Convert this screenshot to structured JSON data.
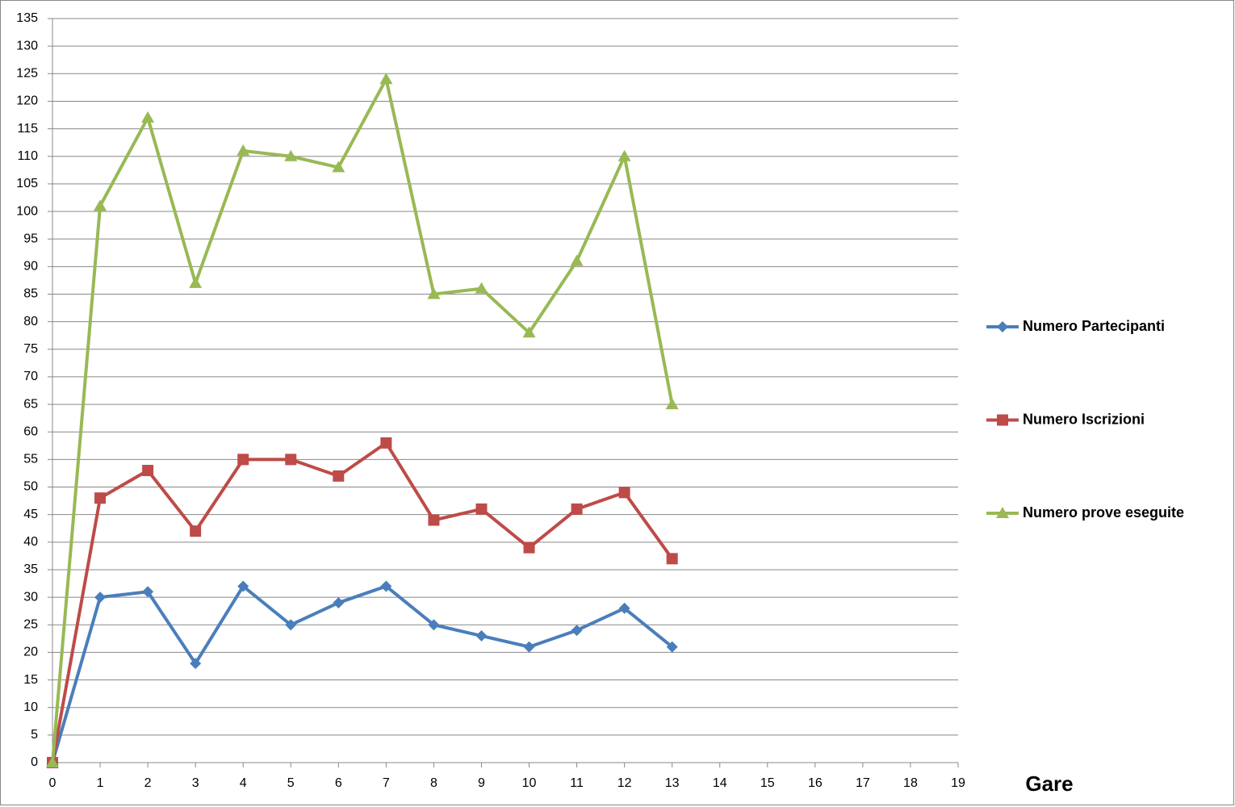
{
  "chart_data": {
    "type": "line",
    "x_label": "Gare",
    "x": [
      0,
      1,
      2,
      3,
      4,
      5,
      6,
      7,
      8,
      9,
      10,
      11,
      12,
      13
    ],
    "series": [
      {
        "name": "Numero Partecipanti",
        "color": "#4a7ebb",
        "marker": "diamond",
        "values": [
          0,
          30,
          31,
          18,
          32,
          25,
          29,
          32,
          25,
          23,
          21,
          24,
          28,
          21
        ]
      },
      {
        "name": "Numero Iscrizioni",
        "color": "#be4b48",
        "marker": "square",
        "values": [
          0,
          48,
          53,
          42,
          55,
          55,
          52,
          58,
          44,
          46,
          39,
          46,
          49,
          37
        ]
      },
      {
        "name": "Numero prove eseguite",
        "color": "#98b954",
        "marker": "triangle",
        "values": [
          0,
          101,
          117,
          87,
          111,
          110,
          108,
          124,
          85,
          86,
          78,
          91,
          110,
          65
        ]
      }
    ],
    "xlim": [
      0,
      19
    ],
    "xticks": [
      0,
      1,
      2,
      3,
      4,
      5,
      6,
      7,
      8,
      9,
      10,
      11,
      12,
      13,
      14,
      15,
      16,
      17,
      18,
      19
    ],
    "ylim": [
      0,
      135
    ],
    "yticks": [
      0,
      5,
      10,
      15,
      20,
      25,
      30,
      35,
      40,
      45,
      50,
      55,
      60,
      65,
      70,
      75,
      80,
      85,
      90,
      95,
      100,
      105,
      110,
      115,
      120,
      125,
      130,
      135
    ],
    "grid": true,
    "legend": "right"
  }
}
